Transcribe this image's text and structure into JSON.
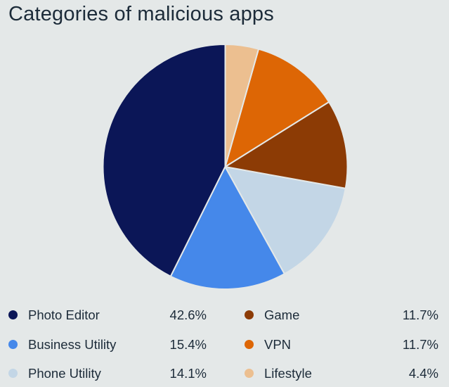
{
  "chart_data": {
    "type": "pie",
    "title": "Categories of malicious apps",
    "start_angle_deg": 0,
    "direction": "counterclockwise",
    "slices": [
      {
        "label": "Photo Editor",
        "value": 42.6,
        "display": "42.6%",
        "color": "#0b1657"
      },
      {
        "label": "Business Utility",
        "value": 15.4,
        "display": "15.4%",
        "color": "#4588ea"
      },
      {
        "label": "Phone Utility",
        "value": 14.1,
        "display": "14.1%",
        "color": "#c3d6e6"
      },
      {
        "label": "Game",
        "value": 11.7,
        "display": "11.7%",
        "color": "#8c3b05"
      },
      {
        "label": "VPN",
        "value": 11.7,
        "display": "11.7%",
        "color": "#dd6605"
      },
      {
        "label": "Lifestyle",
        "value": 4.4,
        "display": "4.4%",
        "color": "#ecbf90"
      }
    ],
    "legend_placement": "bottom"
  }
}
